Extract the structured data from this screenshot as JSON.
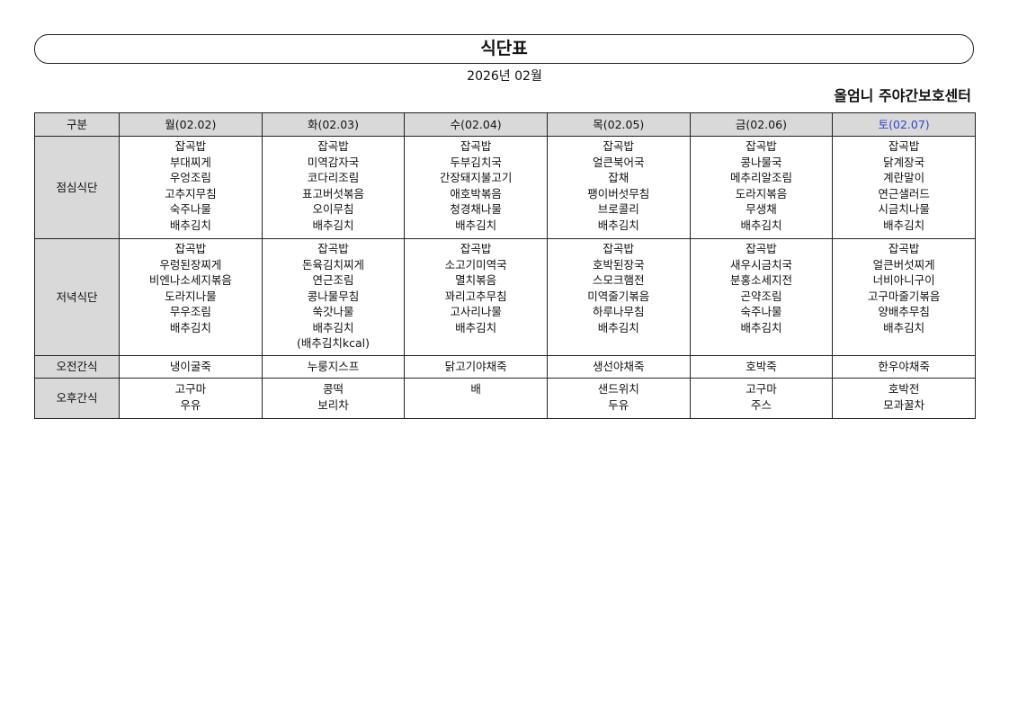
{
  "title": "식단표",
  "date": "2026년 02월",
  "center": "올엄니 주야간보호센터",
  "colors": {
    "header_bg": "#d9d9d9",
    "saturday": "#3344cc"
  },
  "header": [
    "구분",
    "월(02.02)",
    "화(02.03)",
    "수(02.04)",
    "목(02.05)",
    "금(02.06)",
    "토(02.07)"
  ],
  "rows": [
    {
      "label": "점심식단",
      "cells": [
        [
          "잡곡밥",
          "부대찌게",
          "우엉조림",
          "고추지무침",
          "숙주나물",
          "배추김치"
        ],
        [
          "잡곡밥",
          "미역감자국",
          "코다리조림",
          "표고버섯볶음",
          "오이무침",
          "배추김치"
        ],
        [
          "잡곡밥",
          "두부김치국",
          "간장돼지불고기",
          "애호박볶음",
          "청경채나물",
          "배추김치"
        ],
        [
          "잡곡밥",
          "얼큰북어국",
          "잡채",
          "팽이버섯무침",
          "브로콜리",
          "배추김치"
        ],
        [
          "잡곡밥",
          "콩나물국",
          "메추리알조림",
          "도라지볶음",
          "무생채",
          "배추김치"
        ],
        [
          "잡곡밥",
          "닭계장국",
          "계란말이",
          "연근샐러드",
          "시금치나물",
          "배추김치"
        ]
      ]
    },
    {
      "label": "저녁식단",
      "cells": [
        [
          "잡곡밥",
          "우렁된장찌게",
          "비엔나소세지볶음",
          "도라지나물",
          "무우조림",
          "배추김치"
        ],
        [
          "잡곡밥",
          "돈육김치찌게",
          "연근조림",
          "콩나물무침",
          "쑥갓나물",
          "배추김치",
          "(배추김치kcal)"
        ],
        [
          "잡곡밥",
          "소고기미역국",
          "멸치볶음",
          "꽈리고추무침",
          "고사리나물",
          "배추김치"
        ],
        [
          "잡곡밥",
          "호박된장국",
          "스모크햄전",
          "미역줄기볶음",
          "하루나무침",
          "배추김치"
        ],
        [
          "잡곡밥",
          "새우시금치국",
          "분홍소세지전",
          "곤약조림",
          "숙주나물",
          "배추김치"
        ],
        [
          "잡곡밥",
          "얼큰버섯찌게",
          "너비아니구이",
          "고구마줄기볶음",
          "양배추무침",
          "배추김치"
        ]
      ]
    },
    {
      "label": "오전간식",
      "cells": [
        [
          "냉이굴죽"
        ],
        [
          "누룽지스프"
        ],
        [
          "닭고기야채죽"
        ],
        [
          "생선야채죽"
        ],
        [
          "호박죽"
        ],
        [
          "한우야채죽"
        ]
      ]
    },
    {
      "label": "오후간식",
      "cells": [
        [
          "고구마",
          "우유"
        ],
        [
          "콩떡",
          "보리차"
        ],
        [
          "배"
        ],
        [
          "샌드위치",
          "두유"
        ],
        [
          "고구마",
          "주스"
        ],
        [
          "호박전",
          "모과꿀차"
        ]
      ]
    }
  ]
}
